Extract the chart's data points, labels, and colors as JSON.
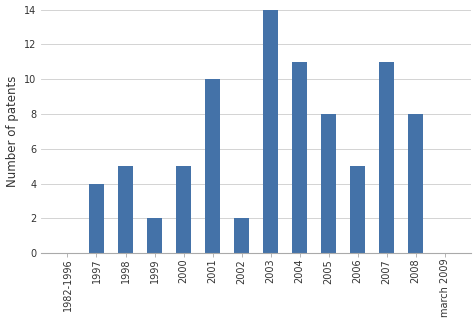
{
  "categories": [
    "1982-1996",
    "1997",
    "1998",
    "1999",
    "2000",
    "2001",
    "2002",
    "2003",
    "2004",
    "2005",
    "2006",
    "2007",
    "2008",
    "march 2009"
  ],
  "values": [
    0,
    4,
    5,
    2,
    5,
    10,
    2,
    14,
    11,
    8,
    5,
    11,
    8,
    0
  ],
  "bar_color": "#4472a8",
  "ylabel": "Number of patents",
  "ylim": [
    0,
    14
  ],
  "yticks": [
    0,
    2,
    4,
    6,
    8,
    10,
    12,
    14
  ],
  "bar_width": 0.5,
  "tick_fontsize": 7,
  "ylabel_fontsize": 8.5,
  "background_color": "#ffffff"
}
